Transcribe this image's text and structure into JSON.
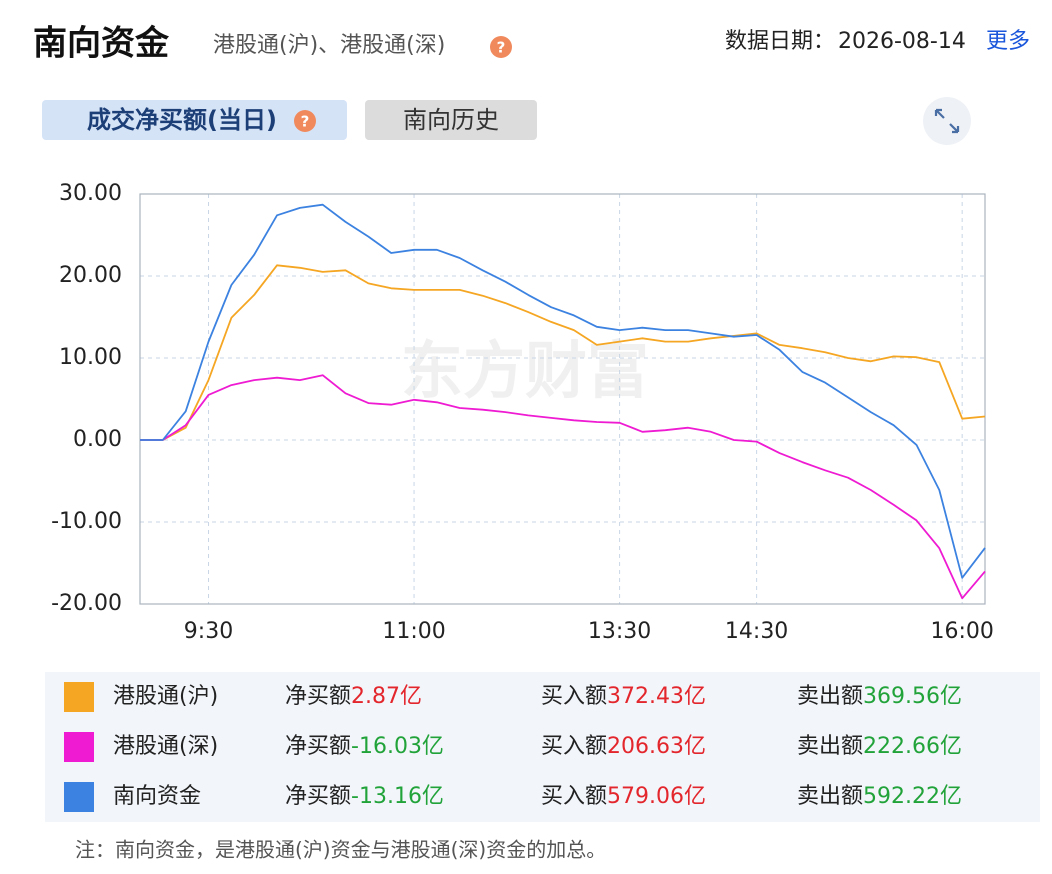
{
  "header": {
    "title": "南向资金",
    "subtitle": "港股通(沪)、港股通(深)",
    "date_label": "数据日期：",
    "date": "2026-08-14",
    "more": "更多"
  },
  "tabs": [
    "成交净买额(当日)",
    "南向历史"
  ],
  "watermark": "东方财富",
  "chart_data": {
    "type": "line",
    "categories": [
      null,
      null,
      null,
      "9:30",
      null,
      null,
      null,
      null,
      null,
      null,
      null,
      null,
      "11:00",
      null,
      null,
      null,
      null,
      null,
      null,
      null,
      null,
      "13:30",
      null,
      null,
      null,
      null,
      null,
      "14:30",
      null,
      null,
      null,
      null,
      null,
      null,
      null,
      null,
      "16:00",
      null
    ],
    "series": [
      {
        "name": "港股通(沪)",
        "color": "#f5a623",
        "values": [
          0,
          0,
          1.5,
          7.3,
          14.9,
          17.7,
          21.3,
          21.0,
          20.5,
          20.7,
          19.1,
          18.5,
          18.3,
          18.3,
          18.3,
          17.6,
          16.7,
          15.6,
          14.4,
          13.4,
          11.6,
          12.0,
          12.4,
          12.0,
          12.0,
          12.4,
          12.7,
          13.0,
          11.6,
          11.2,
          10.7,
          10.0,
          9.6,
          10.2,
          10.1,
          9.5,
          2.6,
          2.87
        ]
      },
      {
        "name": "港股通(深)",
        "color": "#ee1bd2",
        "values": [
          0,
          0,
          1.8,
          5.5,
          6.7,
          7.3,
          7.6,
          7.3,
          7.9,
          5.7,
          4.5,
          4.3,
          4.9,
          4.6,
          3.9,
          3.7,
          3.4,
          3.0,
          2.7,
          2.4,
          2.2,
          2.1,
          1.0,
          1.2,
          1.5,
          1.0,
          0.0,
          -0.2,
          -1.6,
          -2.7,
          -3.7,
          -4.6,
          -6.1,
          -7.9,
          -9.8,
          -13.2,
          -19.3,
          -16.03
        ]
      },
      {
        "name": "南向资金",
        "color": "#3c82e0",
        "values": [
          0,
          0,
          3.5,
          12.0,
          18.9,
          22.6,
          27.4,
          28.3,
          28.7,
          26.6,
          24.8,
          22.8,
          23.2,
          23.2,
          22.2,
          20.7,
          19.3,
          17.7,
          16.2,
          15.2,
          13.8,
          13.4,
          13.7,
          13.4,
          13.4,
          13.0,
          12.6,
          12.8,
          11.0,
          8.3,
          7.0,
          5.2,
          3.4,
          1.8,
          -0.6,
          -6.1,
          -16.8,
          -13.16
        ]
      }
    ],
    "ylim": [
      -20,
      30
    ],
    "yticks": [
      {
        "value": 30,
        "label": "30.00"
      },
      {
        "value": 20,
        "label": "20.00"
      },
      {
        "value": 10,
        "label": "10.00"
      },
      {
        "value": 0,
        "label": "0.00"
      },
      {
        "value": -10,
        "label": "-10.00"
      },
      {
        "value": -20,
        "label": "-20.00"
      }
    ],
    "grid": true
  },
  "summary": {
    "labels": [
      "净买额",
      "买入额",
      "卖出额"
    ],
    "rows": [
      {
        "net": "2.87亿",
        "net_color": "#e3262c",
        "buy": "372.43亿",
        "sell": "369.56亿"
      },
      {
        "net": "-16.03亿",
        "net_color": "#22a33a",
        "buy": "206.63亿",
        "sell": "222.66亿"
      },
      {
        "net": "-13.16亿",
        "net_color": "#22a33a",
        "buy": "579.06亿",
        "sell": "592.22亿"
      }
    ],
    "buy_color": "#e3262c",
    "sell_color": "#22a33a"
  },
  "note": "注：南向资金，是港股通(沪)资金与港股通(深)资金的加总。"
}
